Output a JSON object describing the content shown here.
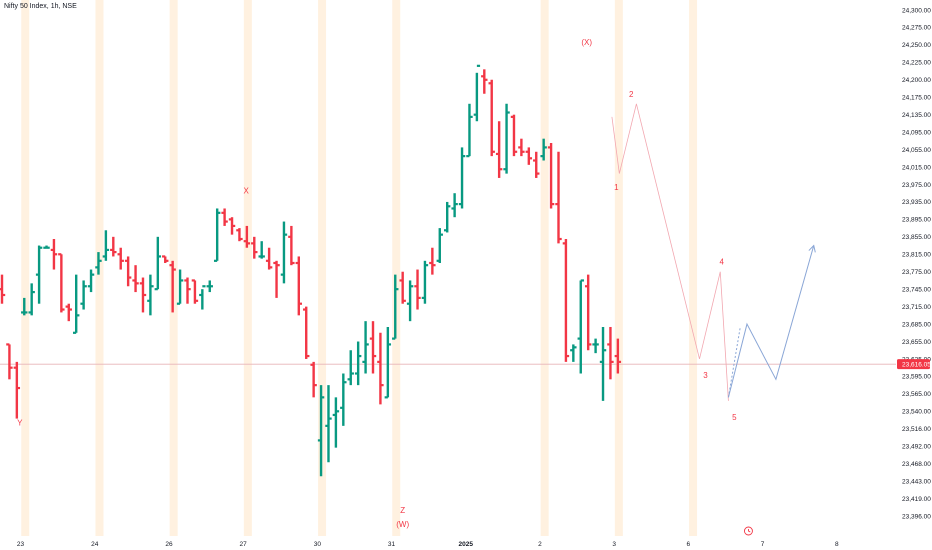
{
  "header": {
    "title": "Nifty 50 Index, 1h, NSE"
  },
  "chart_data": {
    "type": "ohlc",
    "title": "Nifty 50 Index, 1h, NSE",
    "timeframe": "1h",
    "current_price_label": "23,616.05",
    "current_price": 23616.05,
    "colors": {
      "up": "#089981",
      "down": "#f23645",
      "session": "#fff1e0",
      "wave_label": "#f23645",
      "projection": "#8aa6d6",
      "price_line": "#e8b4b8",
      "price_badge": "#f23645"
    },
    "y_ticks": [
      {
        "label": "24,300.00",
        "v": 24300
      },
      {
        "label": "24,275.00",
        "v": 24275
      },
      {
        "label": "24,250.00",
        "v": 24250
      },
      {
        "label": "24,225.00",
        "v": 24225
      },
      {
        "label": "24,200.00",
        "v": 24200
      },
      {
        "label": "24,175.00",
        "v": 24175
      },
      {
        "label": "24,135.00",
        "v": 24135
      },
      {
        "label": "24,095.00",
        "v": 24095
      },
      {
        "label": "24,055.00",
        "v": 24055
      },
      {
        "label": "24,015.00",
        "v": 24015
      },
      {
        "label": "23,975.00",
        "v": 23975
      },
      {
        "label": "23,935.00",
        "v": 23935
      },
      {
        "label": "23,895.00",
        "v": 23895
      },
      {
        "label": "23,855.00",
        "v": 23855
      },
      {
        "label": "23,815.00",
        "v": 23815
      },
      {
        "label": "23,775.00",
        "v": 23775
      },
      {
        "label": "23,745.00",
        "v": 23745
      },
      {
        "label": "23,715.00",
        "v": 23715
      },
      {
        "label": "23,685.00",
        "v": 23685
      },
      {
        "label": "23,655.00",
        "v": 23655
      },
      {
        "label": "23,625.00",
        "v": 23625
      },
      {
        "label": "23,595.00",
        "v": 23595
      },
      {
        "label": "23,565.00",
        "v": 23565
      },
      {
        "label": "23,540.00",
        "v": 23540
      },
      {
        "label": "23,516.00",
        "v": 23516
      },
      {
        "label": "23,492.00",
        "v": 23492
      },
      {
        "label": "23,468.00",
        "v": 23468
      },
      {
        "label": "23,443.00",
        "v": 23443
      },
      {
        "label": "23,419.00",
        "v": 23419
      },
      {
        "label": "23,396.00",
        "v": 23396
      }
    ],
    "x_labels": [
      {
        "label": "23",
        "bar": 2.5
      },
      {
        "label": "24",
        "bar": 12.5
      },
      {
        "label": "26",
        "bar": 22.5
      },
      {
        "label": "27",
        "bar": 32.5
      },
      {
        "label": "30",
        "bar": 42.5
      },
      {
        "label": "31",
        "bar": 52.5
      },
      {
        "label": "2025",
        "bar": 62.5,
        "bold": true
      },
      {
        "label": "2",
        "bar": 72.5
      },
      {
        "label": "3",
        "bar": 82.5
      },
      {
        "label": "6",
        "bar": 92.5
      },
      {
        "label": "7",
        "bar": 102.5
      },
      {
        "label": "8",
        "bar": 112.5
      }
    ],
    "sessions": [
      3,
      13,
      23,
      33,
      43,
      53,
      73,
      83,
      93
    ],
    "bars": [
      [
        23745,
        23770,
        23720,
        23735
      ],
      [
        23650,
        23650,
        23590,
        23610
      ],
      [
        23610,
        23620,
        23530,
        23575
      ],
      [
        23705,
        23730,
        23700,
        23705
      ],
      [
        23705,
        23755,
        23700,
        23740
      ],
      [
        23770,
        23835,
        23720,
        23830
      ],
      [
        23830,
        23835,
        23830,
        23830
      ],
      [
        23825,
        23850,
        23780,
        23815
      ],
      [
        23815,
        23815,
        23705,
        23710
      ],
      [
        23715,
        23720,
        23690,
        23710
      ],
      [
        23670,
        23770,
        23670,
        23700
      ],
      [
        23720,
        23760,
        23710,
        23750
      ],
      [
        23750,
        23780,
        23740,
        23770
      ],
      [
        23785,
        23820,
        23770,
        23800
      ],
      [
        23810,
        23870,
        23800,
        23825
      ],
      [
        23825,
        23855,
        23810,
        23820
      ],
      [
        23815,
        23830,
        23780,
        23800
      ],
      [
        23800,
        23810,
        23750,
        23765
      ],
      [
        23760,
        23790,
        23740,
        23755
      ],
      [
        23755,
        23765,
        23705,
        23735
      ],
      [
        23725,
        23770,
        23700,
        23750
      ],
      [
        23745,
        23855,
        23745,
        23810
      ],
      [
        23810,
        23810,
        23795,
        23800
      ],
      [
        23790,
        23800,
        23705,
        23780
      ],
      [
        23720,
        23780,
        23720,
        23760
      ],
      [
        23760,
        23765,
        23720,
        23745
      ],
      [
        23760,
        23760,
        23720,
        23725
      ],
      [
        23735,
        23745,
        23710,
        23750
      ],
      [
        23750,
        23760,
        23740,
        23750
      ],
      [
        23800,
        23920,
        23800,
        23910
      ],
      [
        23910,
        23920,
        23880,
        23890
      ],
      [
        23895,
        23900,
        23860,
        23880
      ],
      [
        23870,
        23875,
        23845,
        23850
      ],
      [
        23845,
        23880,
        23830,
        23840
      ],
      [
        23840,
        23855,
        23805,
        23820
      ],
      [
        23810,
        23845,
        23805,
        23810
      ],
      [
        23800,
        23830,
        23780,
        23785
      ],
      [
        23795,
        23800,
        23730,
        23790
      ],
      [
        23770,
        23890,
        23755,
        23860
      ],
      [
        23855,
        23880,
        23790,
        23795
      ],
      [
        23795,
        23810,
        23700,
        23720
      ],
      [
        23710,
        23715,
        23625,
        23630
      ],
      [
        23615,
        23620,
        23560,
        23580
      ],
      [
        23500,
        23580,
        23450,
        23560
      ],
      [
        23520,
        23580,
        23470,
        23530
      ],
      [
        23535,
        23560,
        23490,
        23540
      ],
      [
        23545,
        23600,
        23520,
        23585
      ],
      [
        23590,
        23640,
        23580,
        23600
      ],
      [
        23600,
        23655,
        23580,
        23630
      ],
      [
        23620,
        23690,
        23600,
        23650
      ],
      [
        23660,
        23690,
        23600,
        23630
      ],
      [
        23620,
        23670,
        23550,
        23580
      ],
      [
        23560,
        23680,
        23560,
        23650
      ],
      [
        23660,
        23770,
        23660,
        23745
      ],
      [
        23760,
        23775,
        23720,
        23725
      ],
      [
        23720,
        23760,
        23690,
        23750
      ],
      [
        23750,
        23780,
        23710,
        23730
      ],
      [
        23730,
        23800,
        23720,
        23790
      ],
      [
        23795,
        23830,
        23770,
        23790
      ],
      [
        23800,
        23875,
        23795,
        23860
      ],
      [
        23870,
        23935,
        23865,
        23925
      ],
      [
        23920,
        23955,
        23900,
        23930
      ],
      [
        23930,
        24060,
        23920,
        24040
      ],
      [
        24040,
        24160,
        24040,
        24130
      ],
      [
        24135,
        24210,
        24120,
        24220
      ],
      [
        24205,
        24215,
        24180,
        24200
      ],
      [
        24195,
        24200,
        24040,
        24050
      ],
      [
        24045,
        24120,
        23990,
        24010
      ],
      [
        24010,
        24160,
        24000,
        24140
      ],
      [
        24130,
        24135,
        24040,
        24050
      ],
      [
        24060,
        24080,
        24040,
        24050
      ],
      [
        24050,
        24060,
        24020,
        24035
      ],
      [
        24030,
        24050,
        23990,
        24000
      ],
      [
        24040,
        24080,
        24030,
        24060
      ],
      [
        24060,
        24070,
        23920,
        23930
      ],
      [
        23930,
        24050,
        23840,
        23850
      ],
      [
        23840,
        23850,
        23620,
        23630
      ],
      [
        23640,
        23650,
        23620,
        23645
      ],
      [
        23660,
        23760,
        23600,
        23760
      ],
      [
        23750,
        23770,
        23640,
        23650
      ],
      [
        23650,
        23660,
        23635,
        23650
      ],
      [
        23620,
        23680,
        23555,
        23640
      ],
      [
        23650,
        23680,
        23590,
        23620
      ],
      [
        23630,
        23660,
        23600,
        23620
      ]
    ],
    "bar_x_start": 2,
    "bar_spacing": 7.42,
    "wave_labels": [
      {
        "text": "Y",
        "bar": 2.4,
        "v": 23540,
        "dy": 14
      },
      {
        "text": "X",
        "bar": 32.9,
        "v": 23945,
        "dy": -4
      },
      {
        "text": "Z",
        "bar": 54,
        "v": 23420,
        "dy": 15
      },
      {
        "text": "(W)",
        "bar": 54,
        "v": 23420,
        "dy": 29
      },
      {
        "text": "(X)",
        "bar": 78.8,
        "v": 24250,
        "dy": 0
      },
      {
        "text": "1",
        "bar": 82.8,
        "v": 23990,
        "dy": 12
      },
      {
        "text": "2",
        "bar": 84.8,
        "v": 24175,
        "dy": 0
      },
      {
        "text": "3",
        "bar": 94.8,
        "v": 23620,
        "dy": 16
      },
      {
        "text": "4",
        "bar": 97,
        "v": 23775,
        "dy": -7
      },
      {
        "text": "5",
        "bar": 98.7,
        "v": 23555,
        "dy": 19
      }
    ],
    "wave_lines": [
      [
        [
          82.2,
          24130
        ],
        [
          83.2,
          24000
        ],
        [
          85.5,
          24160
        ],
        [
          94,
          23625
        ],
        [
          96.8,
          23775
        ],
        [
          97.9,
          23555
        ]
      ]
    ],
    "projection_path": [
      [
        97.9,
        23560
      ],
      [
        100.4,
        23685
      ],
      [
        104.3,
        23590
      ],
      [
        109.4,
        23835
      ]
    ],
    "projection_arrow_at": [
      109.4,
      23835
    ],
    "projection_dash": [
      [
        97.9,
        23560
      ],
      [
        99.5,
        23680
      ]
    ]
  }
}
